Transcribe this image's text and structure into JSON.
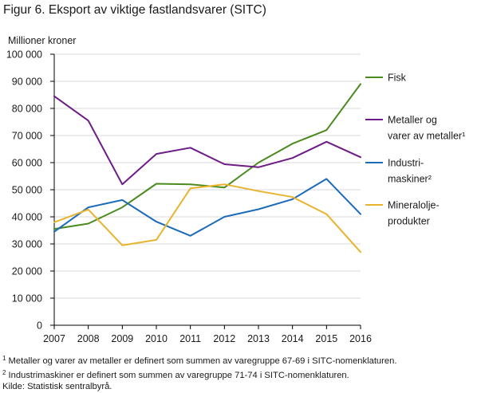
{
  "title": "Figur 6. Eksport av viktige fastlandsvarer (SITC)",
  "unit_label": "Millioner  kroner",
  "footnotes": [
    {
      "mark": "1",
      "text": " Metaller og varer av metaller er definert som summen av varegruppe 67-69 i SITC-nomenklaturen."
    },
    {
      "mark": "2",
      "text": " Industrimaskiner er definert som summen av varegruppe 71-74 i SITC-nomenklaturen."
    },
    {
      "mark": "",
      "text": "Kilde: Statistisk sentralbyrå."
    }
  ],
  "chart_data": {
    "type": "line",
    "x": [
      "2007",
      "2008",
      "2009",
      "2010",
      "2011",
      "2012",
      "2013",
      "2014",
      "2015",
      "2016"
    ],
    "ylim": [
      0,
      100000
    ],
    "yticks": [
      0,
      10000,
      20000,
      30000,
      40000,
      50000,
      60000,
      70000,
      80000,
      90000,
      100000
    ],
    "ytick_labels": [
      "0",
      "10 000",
      "20 000",
      "30 000",
      "40 000",
      "50 000",
      "60 000",
      "70 000",
      "80 000",
      "90 000",
      "100 000"
    ],
    "grid": "horizontal",
    "legend_position": "right",
    "series": [
      {
        "name": "Fisk",
        "legend_lines": [
          "Fisk"
        ],
        "color": "#4b8a1e",
        "values": [
          35500,
          37500,
          43500,
          52200,
          52000,
          50800,
          60000,
          67000,
          72000,
          89000
        ]
      },
      {
        "name": "Metaller og varer av metaller¹",
        "legend_lines": [
          "Metaller og",
          "varer av metaller¹"
        ],
        "color": "#6e1b86",
        "values": [
          84500,
          75500,
          52000,
          63200,
          65500,
          59400,
          58300,
          61700,
          67700,
          62000
        ]
      },
      {
        "name": "Industrimaskiner²",
        "legend_lines": [
          "Industri-",
          "maskiner²"
        ],
        "color": "#1b6bb8",
        "values": [
          34500,
          43500,
          46200,
          38200,
          33000,
          40000,
          42800,
          46500,
          54000,
          41000
        ]
      },
      {
        "name": "Mineraloljeprodukter",
        "legend_lines": [
          "Mineralolje-",
          "produkter"
        ],
        "color": "#e8b42e",
        "values": [
          38000,
          42700,
          29500,
          31500,
          50500,
          52000,
          49500,
          47300,
          41000,
          27000
        ]
      }
    ]
  }
}
